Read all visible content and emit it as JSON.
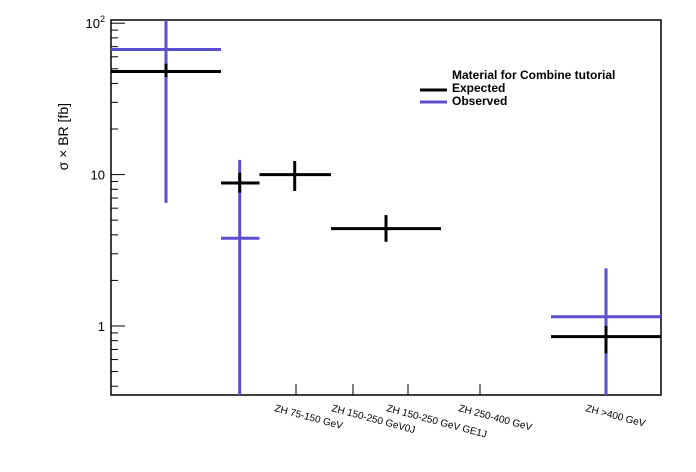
{
  "chart_data": {
    "type": "scatter",
    "ylabel": "σ × BR [fb]",
    "yscale": "log",
    "ylim": [
      0.35,
      105
    ],
    "yticks": [
      {
        "value": 1,
        "label": "1"
      },
      {
        "value": 10,
        "label": "10"
      },
      {
        "value": 100,
        "label": "10",
        "sup": "2"
      }
    ],
    "categories": [
      "ZH 75-150 GeV",
      "ZH 150-250 GeV0J",
      "ZH 150-250 GeV GE1J",
      "ZH 250-400 GeV",
      "ZH >400 GeV"
    ],
    "legend": {
      "position": "top-right",
      "title": "Material for Combine tutorial",
      "entries": [
        {
          "label": "Expected",
          "color": "#000000"
        },
        {
          "label": "Observed",
          "color": "#5b4fcf"
        }
      ]
    },
    "series": [
      {
        "name": "Expected",
        "color": "#000000",
        "points": [
          {
            "bin": [
              0,
              1
            ],
            "x": 0.5,
            "y": 48,
            "ylow": 44,
            "yhigh": 54
          },
          {
            "bin": [
              1,
              1.35
            ],
            "x": 1.17,
            "y": 8.8,
            "ylow": 7.6,
            "yhigh": 10.3
          },
          {
            "bin": [
              1.35,
              2.0
            ],
            "x": 1.67,
            "y": 10,
            "ylow": 7.8,
            "yhigh": 12.3
          },
          {
            "bin": [
              2.0,
              3.0
            ],
            "x": 2.5,
            "y": 4.4,
            "ylow": 3.6,
            "yhigh": 5.4
          },
          {
            "bin": [
              4.0,
              5.0
            ],
            "x": 4.5,
            "y": 0.85,
            "ylow": 0.66,
            "yhigh": 1.0
          }
        ]
      },
      {
        "name": "Observed",
        "color": "#5b4fcf",
        "points": [
          {
            "bin": [
              0,
              1
            ],
            "x": 0.5,
            "y": 67,
            "ylow": 6.5,
            "yhigh": 105
          },
          {
            "bin": [
              1,
              1.35
            ],
            "x": 1.17,
            "y": 3.8,
            "ylow": 0.35,
            "yhigh": 12.5
          },
          {
            "bin": [
              4.0,
              5.0
            ],
            "x": 4.5,
            "y": 1.15,
            "ylow": 0.35,
            "yhigh": 2.4
          }
        ]
      }
    ]
  }
}
